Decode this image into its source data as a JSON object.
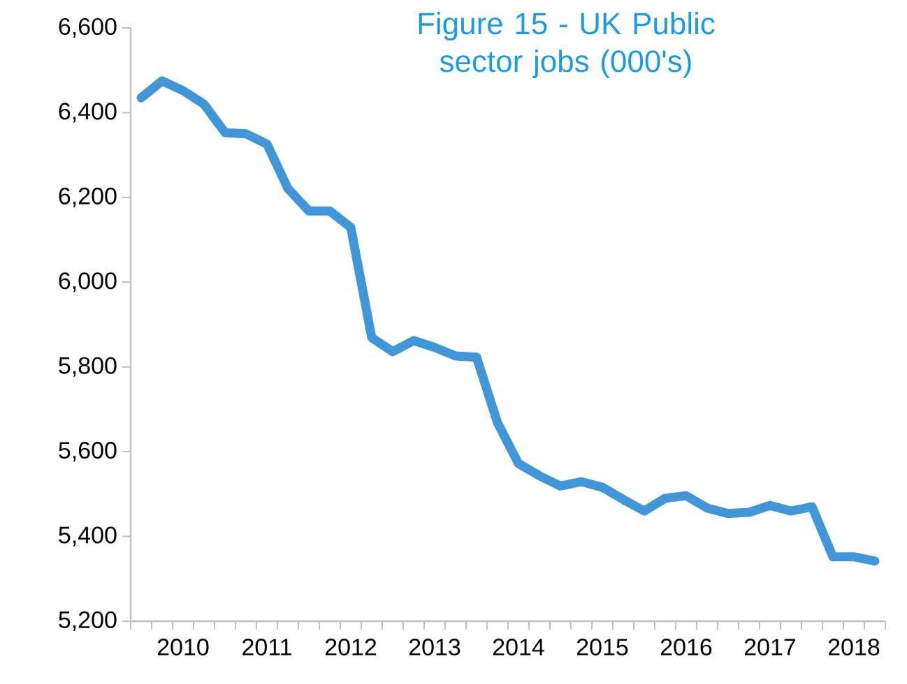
{
  "chart_data": {
    "type": "line",
    "title": "Figure 15 - UK Public sector jobs (000's)",
    "categories": [
      null,
      null,
      "2010",
      null,
      null,
      null,
      "2011",
      null,
      null,
      null,
      "2012",
      null,
      null,
      null,
      "2013",
      null,
      null,
      null,
      "2014",
      null,
      null,
      null,
      "2015",
      null,
      null,
      null,
      "2016",
      null,
      null,
      null,
      "2017",
      null,
      null,
      null,
      "2018",
      null
    ],
    "values": [
      6435,
      6475,
      6452,
      6420,
      6353,
      6350,
      6326,
      6221,
      6168,
      6168,
      6129,
      5869,
      5836,
      5862,
      5846,
      5826,
      5823,
      5668,
      5572,
      5543,
      5519,
      5529,
      5516,
      5487,
      5460,
      5490,
      5496,
      5467,
      5454,
      5457,
      5473,
      5460,
      5470,
      5352,
      5352,
      5342
    ],
    "color": "#4096d6",
    "ylim": [
      5200,
      6600
    ],
    "yticks": [
      {
        "value": 5200,
        "label": "5,200"
      },
      {
        "value": 5400,
        "label": "5,400"
      },
      {
        "value": 5600,
        "label": "5,600"
      },
      {
        "value": 5800,
        "label": "5,800"
      },
      {
        "value": 6000,
        "label": "6,000"
      },
      {
        "value": 6200,
        "label": "6,200"
      },
      {
        "value": 6400,
        "label": "6,400"
      },
      {
        "value": 6600,
        "label": "6,600"
      }
    ],
    "grid": false,
    "marker": "none",
    "line_style": "solid"
  }
}
